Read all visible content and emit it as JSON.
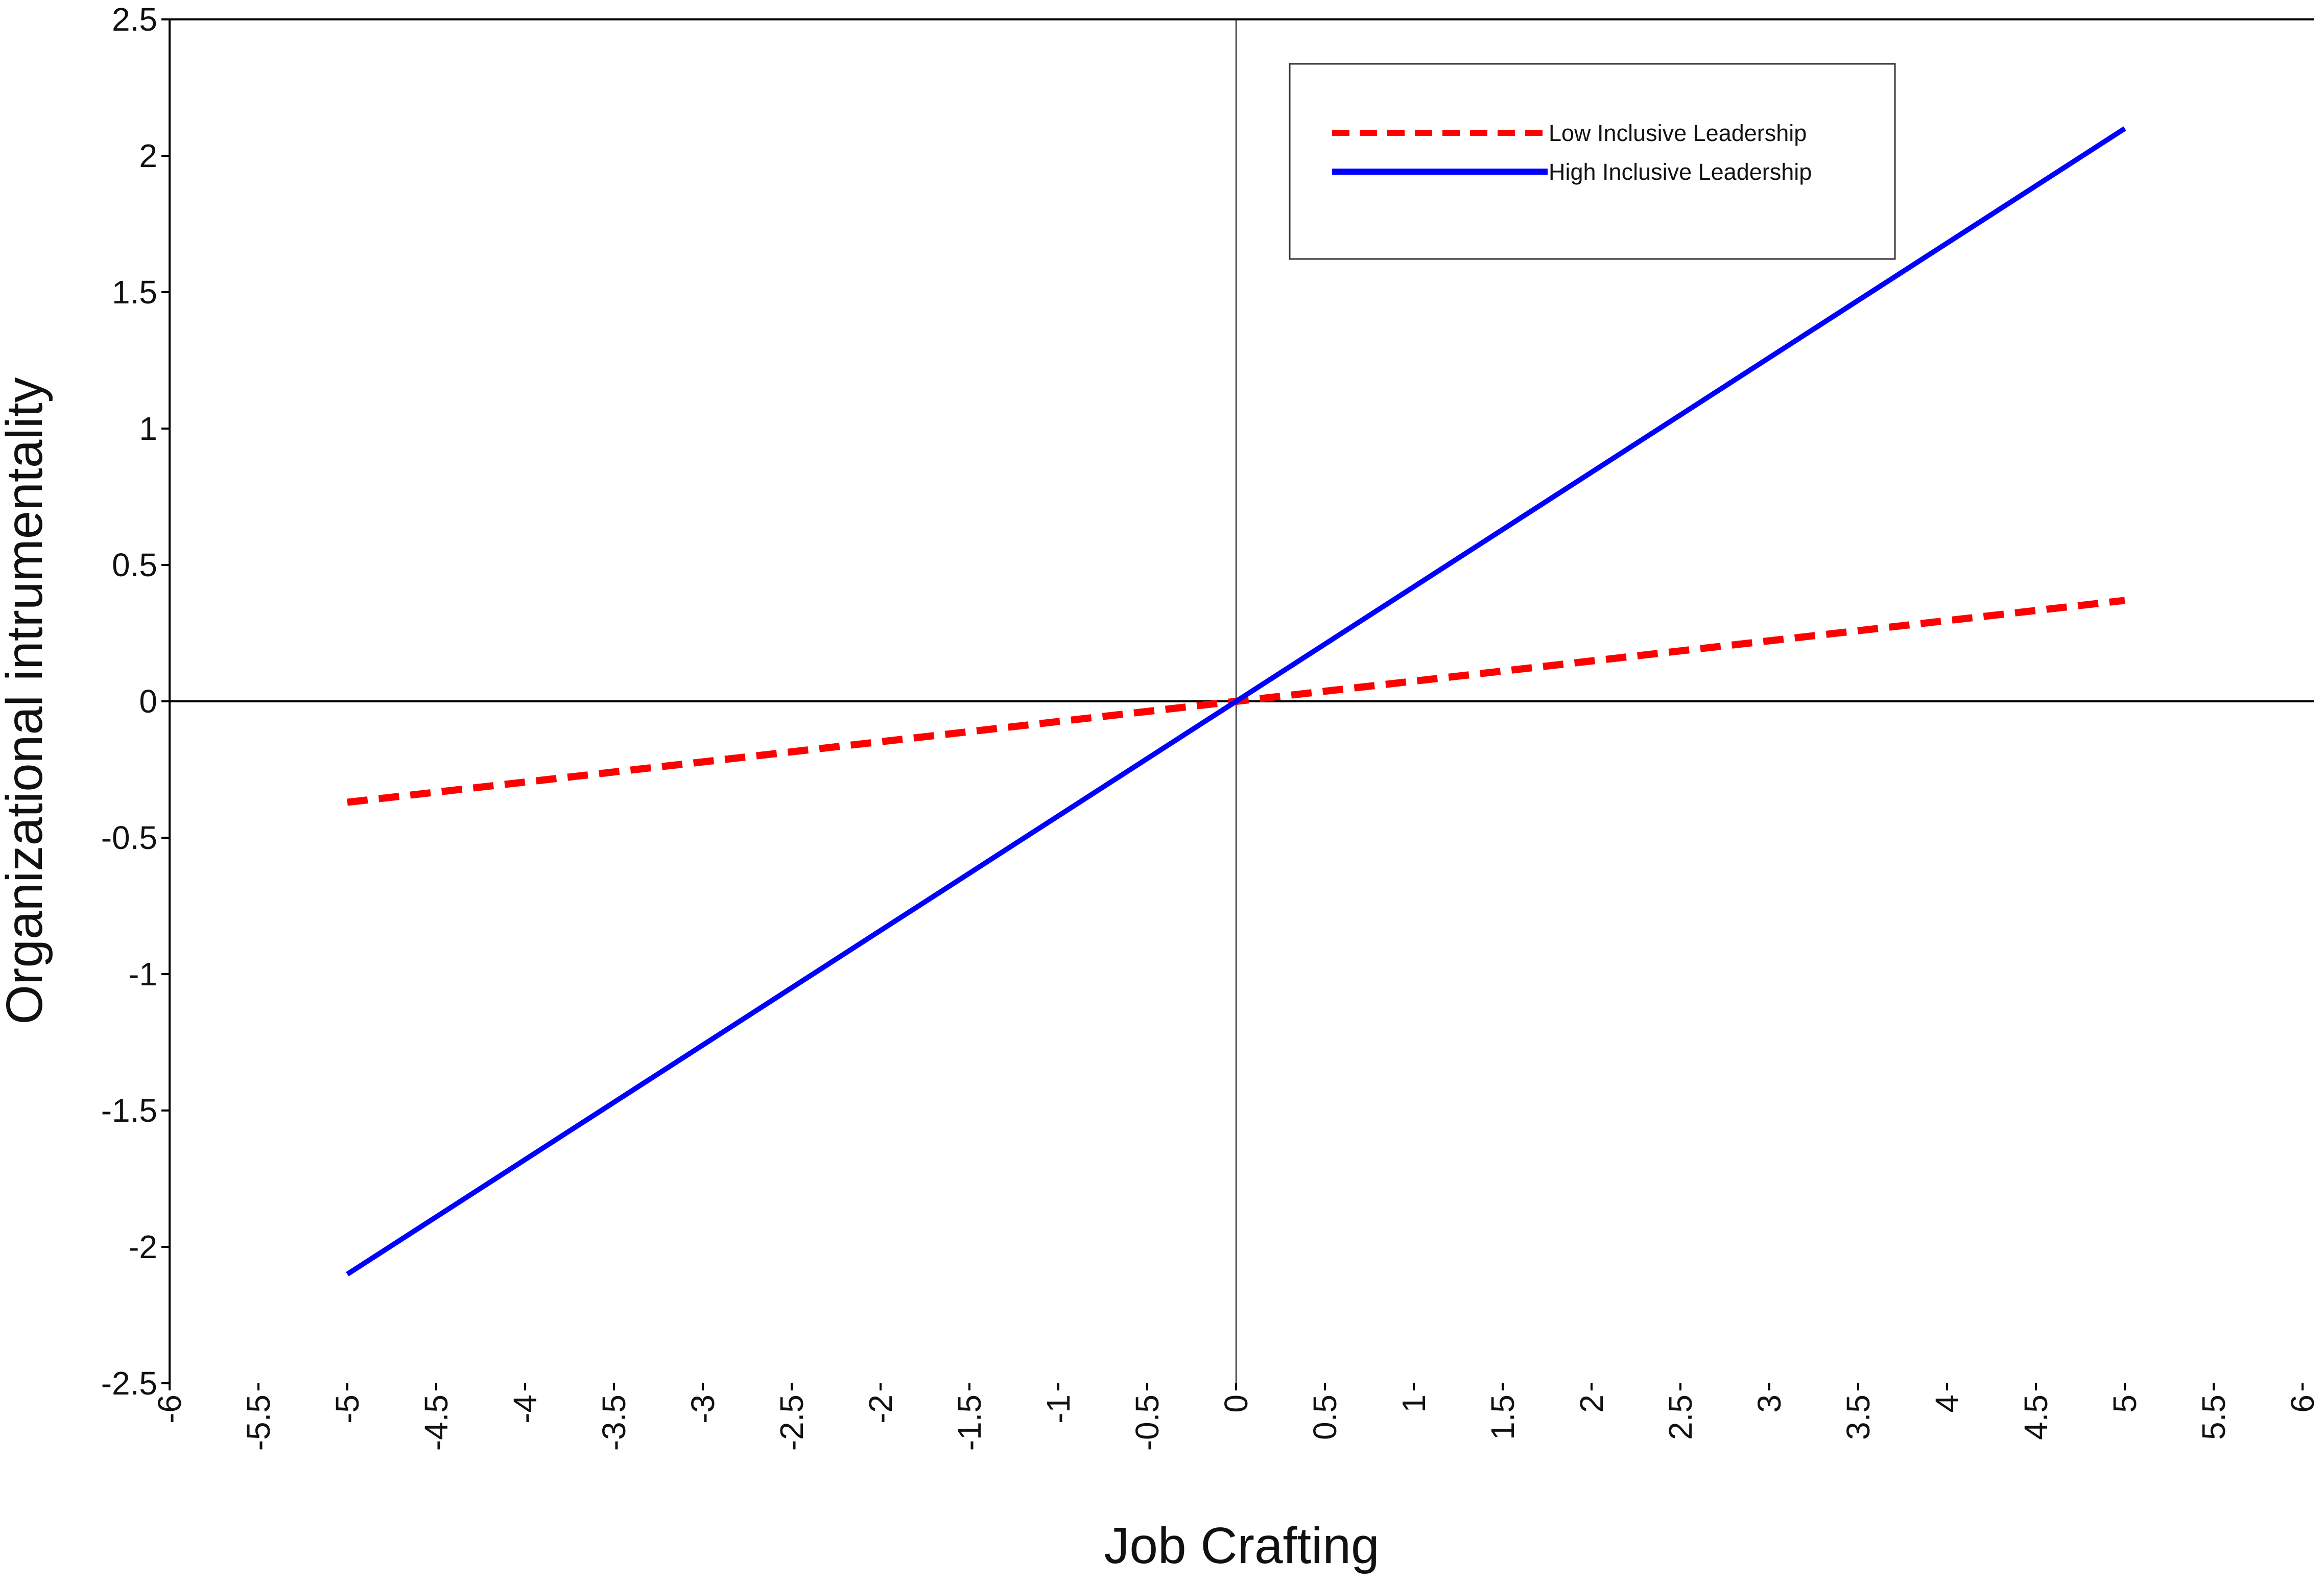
{
  "chart_data": {
    "type": "line",
    "title": "",
    "xlabel": "Job Crafting",
    "ylabel": "Organizational intrumentality",
    "xlim": [
      -6,
      6
    ],
    "ylim": [
      -2.5,
      2.5
    ],
    "x_ticks": [
      -6,
      -5.5,
      -5,
      -4.5,
      -4,
      -3.5,
      -3,
      -2.5,
      -2,
      -1.5,
      -1,
      -0.5,
      0,
      0.5,
      1,
      1.5,
      2,
      2.5,
      3,
      3.5,
      4,
      4.5,
      5,
      5.5,
      6
    ],
    "y_ticks": [
      2.5,
      2,
      1.5,
      1,
      0.5,
      0,
      -0.5,
      -1,
      -1.5,
      -2,
      -2.5
    ],
    "x_tick_labels": [
      "-6",
      "-5.5",
      "-5",
      "-4.5",
      "-4",
      "-3.5",
      "-3",
      "-2.5",
      "-2",
      "-1.5",
      "-1",
      "-0.5",
      "0",
      "0.5",
      "1",
      "1.5",
      "2",
      "2.5",
      "3",
      "3.5",
      "4",
      "4.5",
      "5",
      "5.5",
      "6"
    ],
    "y_tick_labels": [
      "2.5",
      "2",
      "1.5",
      "1",
      "0.5",
      "0",
      "-0.5",
      "-1",
      "-1.5",
      "-2",
      "-2.5"
    ],
    "grid": false,
    "legend_position": "top-right",
    "series": [
      {
        "name": "Low Inclusive Leadership",
        "color": "#ff0000",
        "style": "dashed",
        "x": [
          -5,
          5
        ],
        "y": [
          -0.37,
          0.37
        ]
      },
      {
        "name": "High Inclusive Leadership",
        "color": "#0000ff",
        "style": "solid",
        "x": [
          -5,
          5
        ],
        "y": [
          -2.1,
          2.1
        ]
      }
    ]
  }
}
